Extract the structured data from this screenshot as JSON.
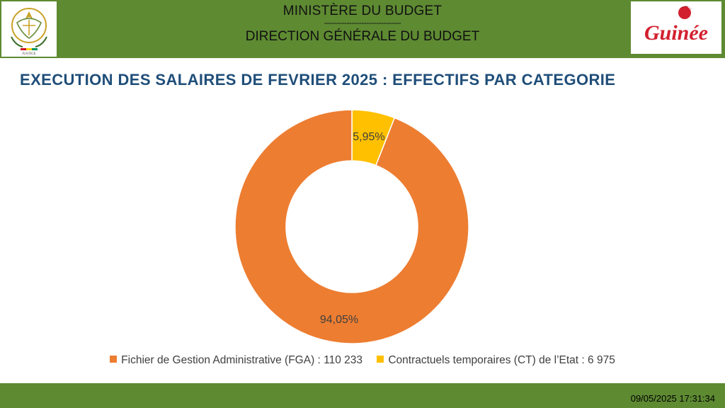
{
  "header": {
    "ministry": "MINISTÈRE DU BUDGET",
    "divider": "-------------------------------",
    "direction": "DIRECTION GÉNÉRALE DU BUDGET",
    "logo_text": "Guinée",
    "emblem_text": "JUSTICE",
    "band_color": "#5e8a32"
  },
  "page_title": "EXECUTION DES SALAIRES DE FEVRIER 2025 : EFFECTIFS PAR CATEGORIE",
  "chart_data": {
    "type": "pie",
    "variant": "donut",
    "title": "EXECUTION DES SALAIRES DE FEVRIER 2025 : EFFECTIFS PAR CATEGORIE",
    "slices": [
      {
        "label": "Fichier de Gestion Administrative (FGA)",
        "value": 110233,
        "value_label": "110 233",
        "percent_label": "94,05%",
        "color": "#ed7d31"
      },
      {
        "label": "Contractuels temporaires (CT) de l’Etat",
        "value": 6975,
        "value_label": "6 975",
        "percent_label": "5,95%",
        "color": "#ffc000"
      }
    ],
    "legend_position": "bottom"
  },
  "legend": [
    {
      "text": "Fichier de Gestion Administrative (FGA) : 110 233",
      "color": "#ed7d31"
    },
    {
      "text": "Contractuels temporaires (CT) de l’Etat : 6 975",
      "color": "#ffc000"
    }
  ],
  "footer": {
    "timestamp": "09/05/2025 17:31:34",
    "band_color": "#5e8a32"
  }
}
